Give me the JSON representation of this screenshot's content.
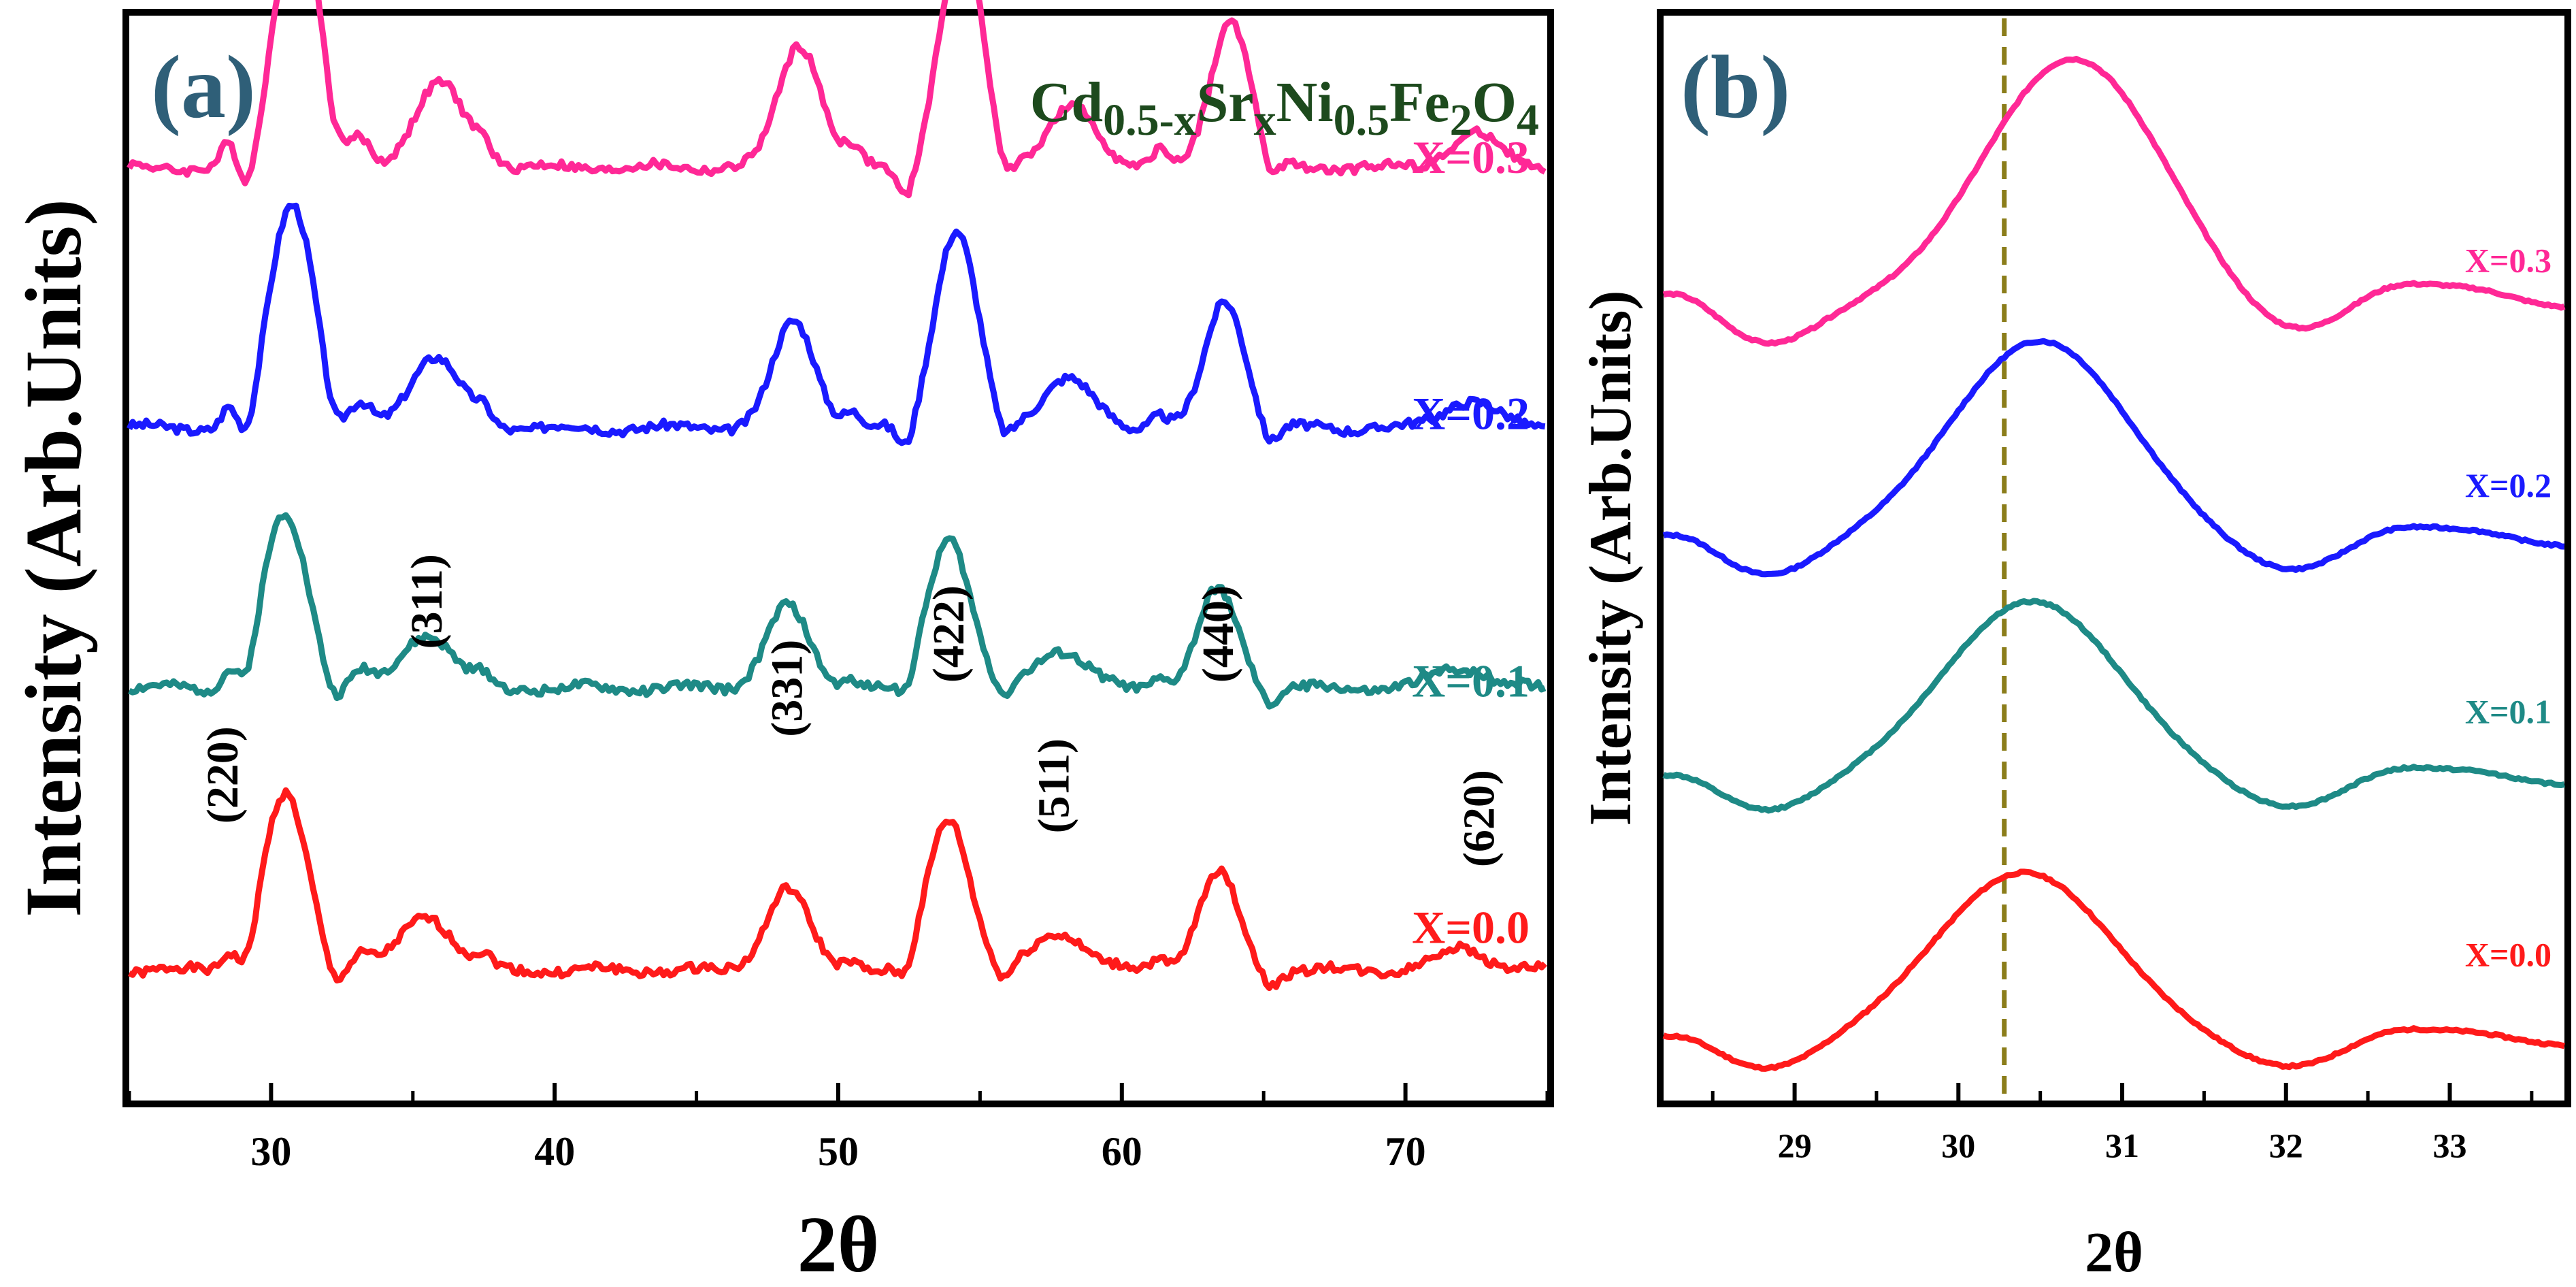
{
  "chart_data": [
    {
      "type": "line",
      "panel_label": "(a)",
      "title": "Cd0.5-xSrxNi0.5Fe2O4",
      "formula_parts": [
        {
          "text": "Cd",
          "sub": false
        },
        {
          "text": "0.5-x",
          "sub": true
        },
        {
          "text": "Sr",
          "sub": false
        },
        {
          "text": "x",
          "sub": true
        },
        {
          "text": "Ni",
          "sub": false
        },
        {
          "text": "0.5",
          "sub": true
        },
        {
          "text": "Fe",
          "sub": false
        },
        {
          "text": "2",
          "sub": true
        },
        {
          "text": "O",
          "sub": false
        },
        {
          "text": "4",
          "sub": true
        }
      ],
      "xlabel": "2θ",
      "ylabel": "Intensity (Arb.Units)",
      "xlim": [
        25,
        75
      ],
      "ylim": [
        0,
        100
      ],
      "xticks": [
        30,
        40,
        50,
        60,
        70
      ],
      "yticks_shown": false,
      "grid": false,
      "peaks": [
        {
          "position": 30.5,
          "height": 16,
          "width": 0.8
        },
        {
          "position": 35.5,
          "height": 5,
          "width": 0.9
        },
        {
          "position": 48.2,
          "height": 7.5,
          "width": 0.75
        },
        {
          "position": 53.9,
          "height": 14,
          "width": 0.75
        },
        {
          "position": 57.8,
          "height": 3.5,
          "width": 0.9
        },
        {
          "position": 63.4,
          "height": 9,
          "width": 0.7
        },
        {
          "position": 72.0,
          "height": 2,
          "width": 0.9
        }
      ],
      "series": [
        {
          "name": "X=0.0",
          "label": "X=0.0",
          "color": "#ff1a1a",
          "baseline": 12,
          "scale": 1.0,
          "shift": 0.0,
          "seed": 1
        },
        {
          "name": "X=0.1",
          "label": "X=0.1",
          "color": "#1e8a86",
          "baseline": 38,
          "scale": 1.0,
          "shift": 0.0,
          "seed": 2
        },
        {
          "name": "X=0.2",
          "label": "X=0.2",
          "color": "#1a1aff",
          "baseline": 62,
          "scale": 1.3,
          "shift": 0.25,
          "seed": 3
        },
        {
          "name": "X=0.3",
          "label": "X=0.3",
          "color": "#ff2896",
          "baseline": 86,
          "scale": 1.52,
          "shift": 0.45,
          "seed": 4
        }
      ],
      "annotations": [
        {
          "text": "(220)",
          "x": 28.3,
          "y": 30
        },
        {
          "text": "(311)",
          "x": 35.5,
          "y": 46
        },
        {
          "text": "(331)",
          "x": 48.2,
          "y": 38
        },
        {
          "text": "(422)",
          "x": 53.9,
          "y": 43
        },
        {
          "text": "(511)",
          "x": 57.6,
          "y": 29
        },
        {
          "text": "(440)",
          "x": 63.4,
          "y": 43
        },
        {
          "text": "(620)",
          "x": 72.6,
          "y": 26
        }
      ]
    },
    {
      "type": "line",
      "panel_label": "(b)",
      "title": "",
      "xlabel": "2θ",
      "ylabel": "Intensity (Arb.Units)",
      "xlim": [
        28.2,
        33.7
      ],
      "ylim": [
        0,
        100
      ],
      "xticks": [
        29,
        30,
        31,
        32,
        33
      ],
      "yticks_shown": false,
      "grid": false,
      "reference_line": {
        "x": 30.28,
        "style": "dashed",
        "color": "#8b7d1a"
      },
      "series": [
        {
          "name": "X=0.0",
          "label": "X=0.0",
          "color": "#ff1a1a",
          "baseline": 5,
          "peak_pos": 30.4,
          "peak_height": 16,
          "seed": 11
        },
        {
          "name": "X=0.1",
          "label": "X=0.1",
          "color": "#1e8a86",
          "baseline": 29,
          "peak_pos": 30.45,
          "peak_height": 17,
          "seed": 12
        },
        {
          "name": "X=0.2",
          "label": "X=0.2",
          "color": "#1a1aff",
          "baseline": 51,
          "peak_pos": 30.5,
          "peak_height": 19,
          "seed": 13
        },
        {
          "name": "X=0.3",
          "label": "X=0.3",
          "color": "#ff2896",
          "baseline": 73,
          "peak_pos": 30.7,
          "peak_height": 23,
          "seed": 14
        }
      ]
    }
  ]
}
